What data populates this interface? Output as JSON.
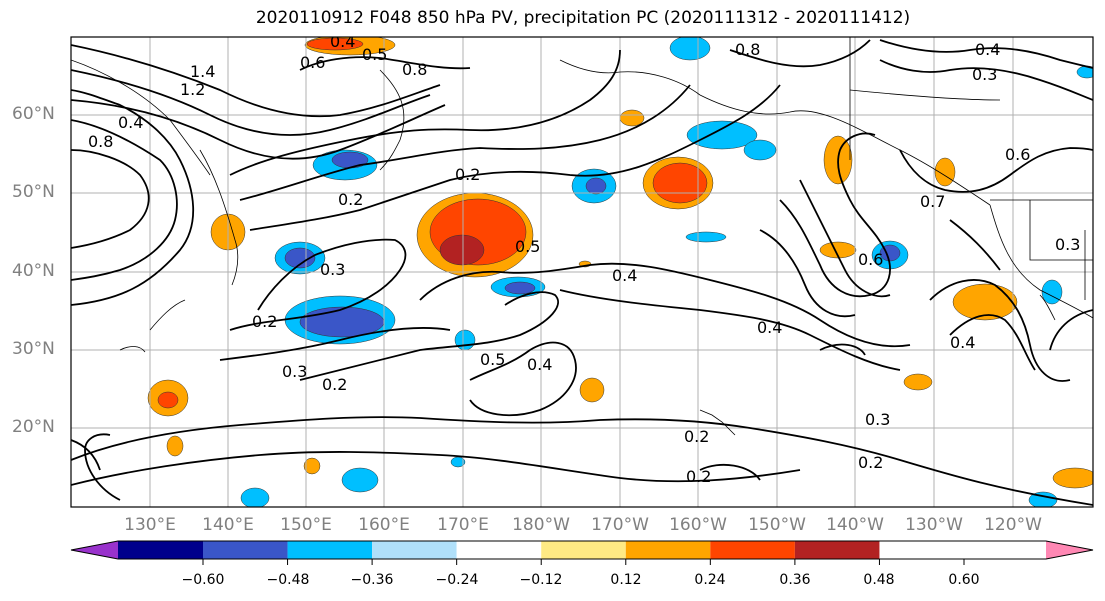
{
  "title": "2020110912 F048 850 hPa PV, precipitation PC (2020111312 - 2020111412)",
  "map": {
    "lat_labels": [
      "60°N",
      "50°N",
      "40°N",
      "30°N",
      "20°N"
    ],
    "lon_labels": [
      "130°E",
      "140°E",
      "150°E",
      "160°E",
      "170°E",
      "180°W",
      "170°W",
      "160°W",
      "150°W",
      "140°W",
      "130°W",
      "120°W"
    ],
    "contour_labels": [
      "0.4",
      "0.5",
      "0.8",
      "0.6",
      "1.4",
      "1.2",
      "0.8",
      "0.4",
      "0.2",
      "0.2",
      "0.3",
      "0.2",
      "0.3",
      "0.2",
      "0.5",
      "0.4",
      "0.4",
      "0.5",
      "0.2",
      "0.2",
      "0.3",
      "0.2",
      "0.4",
      "0.6",
      "0.7",
      "0.8",
      "0.6",
      "0.4",
      "0.3",
      "0.4",
      "0.3"
    ]
  },
  "colorbar": {
    "ticks": [
      "−0.60",
      "−0.48",
      "−0.36",
      "−0.24",
      "−0.12",
      "0.12",
      "0.24",
      "0.36",
      "0.48",
      "0.60"
    ],
    "colors": [
      "#9932cc",
      "#00008b",
      "#3a56c8",
      "#00bfff",
      "#b0e0fa",
      "#ffffff",
      "#ffea84",
      "#ffa500",
      "#ff4500",
      "#b22222",
      "#ff88b4"
    ]
  }
}
